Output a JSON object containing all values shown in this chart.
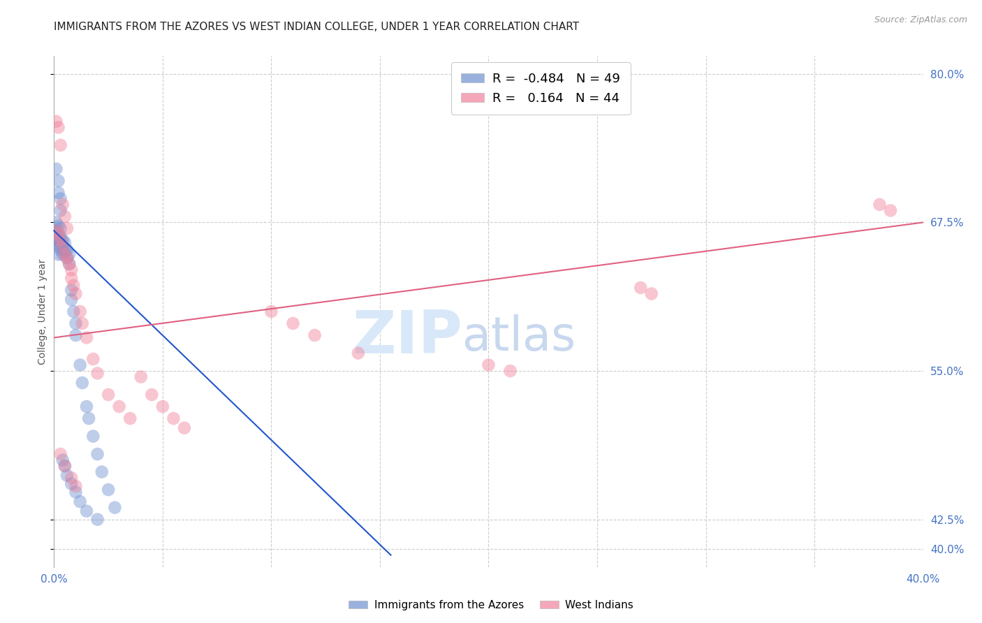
{
  "title": "IMMIGRANTS FROM THE AZORES VS WEST INDIAN COLLEGE, UNDER 1 YEAR CORRELATION CHART",
  "source": "Source: ZipAtlas.com",
  "ylabel": "College, Under 1 year",
  "xlabel": "",
  "background_color": "#ffffff",
  "grid_color": "#c8c8c8",
  "title_fontsize": 11,
  "axis_label_color": "#4472c4",
  "blue_R": -0.484,
  "blue_N": 49,
  "pink_R": 0.164,
  "pink_N": 44,
  "blue_color": "#7090d0",
  "pink_color": "#f0829a",
  "blue_line_color": "#2255cc",
  "pink_line_color": "#e06080",
  "xlim": [
    0.0,
    0.4
  ],
  "ylim": [
    0.385,
    0.815
  ],
  "xtick_positions": [
    0.0,
    0.05,
    0.1,
    0.15,
    0.2,
    0.25,
    0.3,
    0.35,
    0.4
  ],
  "xtick_labels": [
    "0.0%",
    "",
    "",
    "",
    "",
    "",
    "",
    "",
    "40.0%"
  ],
  "ytick_positions": [
    0.4,
    0.425,
    0.55,
    0.675,
    0.8
  ],
  "ytick_labels": [
    "40.0%",
    "42.5%",
    "55.0%",
    "67.5%",
    "80.0%"
  ],
  "blue_x": [
    0.001,
    0.001,
    0.001,
    0.001,
    0.002,
    0.002,
    0.002,
    0.002,
    0.002,
    0.003,
    0.003,
    0.003,
    0.003,
    0.004,
    0.004,
    0.004,
    0.005,
    0.005,
    0.006,
    0.006,
    0.007,
    0.007,
    0.008,
    0.008,
    0.009,
    0.01,
    0.01,
    0.012,
    0.013,
    0.015,
    0.016,
    0.018,
    0.02,
    0.022,
    0.025,
    0.028,
    0.001,
    0.002,
    0.002,
    0.003,
    0.003,
    0.004,
    0.005,
    0.006,
    0.008,
    0.01,
    0.012,
    0.015,
    0.02
  ],
  "blue_y": [
    0.675,
    0.668,
    0.662,
    0.658,
    0.672,
    0.665,
    0.66,
    0.655,
    0.648,
    0.67,
    0.663,
    0.658,
    0.652,
    0.66,
    0.654,
    0.648,
    0.658,
    0.65,
    0.652,
    0.645,
    0.648,
    0.64,
    0.618,
    0.61,
    0.6,
    0.59,
    0.58,
    0.555,
    0.54,
    0.52,
    0.51,
    0.495,
    0.48,
    0.465,
    0.45,
    0.435,
    0.72,
    0.71,
    0.7,
    0.695,
    0.685,
    0.475,
    0.47,
    0.462,
    0.455,
    0.448,
    0.44,
    0.432,
    0.425
  ],
  "pink_x": [
    0.001,
    0.001,
    0.002,
    0.002,
    0.003,
    0.003,
    0.004,
    0.004,
    0.005,
    0.005,
    0.006,
    0.006,
    0.007,
    0.008,
    0.008,
    0.009,
    0.01,
    0.012,
    0.013,
    0.015,
    0.018,
    0.02,
    0.025,
    0.03,
    0.035,
    0.04,
    0.045,
    0.05,
    0.055,
    0.06,
    0.1,
    0.11,
    0.12,
    0.14,
    0.2,
    0.21,
    0.27,
    0.275,
    0.38,
    0.385,
    0.003,
    0.005,
    0.008,
    0.01
  ],
  "pink_y": [
    0.76,
    0.668,
    0.755,
    0.665,
    0.74,
    0.66,
    0.69,
    0.655,
    0.68,
    0.648,
    0.67,
    0.645,
    0.64,
    0.635,
    0.628,
    0.622,
    0.615,
    0.6,
    0.59,
    0.578,
    0.56,
    0.548,
    0.53,
    0.52,
    0.51,
    0.545,
    0.53,
    0.52,
    0.51,
    0.502,
    0.6,
    0.59,
    0.58,
    0.565,
    0.555,
    0.55,
    0.62,
    0.615,
    0.69,
    0.685,
    0.48,
    0.47,
    0.46,
    0.453
  ],
  "blue_trend_x0": 0.0,
  "blue_trend_x1": 0.155,
  "blue_trend_y0": 0.668,
  "blue_trend_y1": 0.395,
  "pink_trend_x0": 0.0,
  "pink_trend_x1": 0.4,
  "pink_trend_y0": 0.578,
  "pink_trend_y1": 0.675,
  "watermark_zip_color": "#d8e8f8",
  "watermark_atlas_color": "#c8d8ee",
  "watermark_fontsize": 62,
  "dot_size": 180,
  "dot_alpha": 0.45
}
